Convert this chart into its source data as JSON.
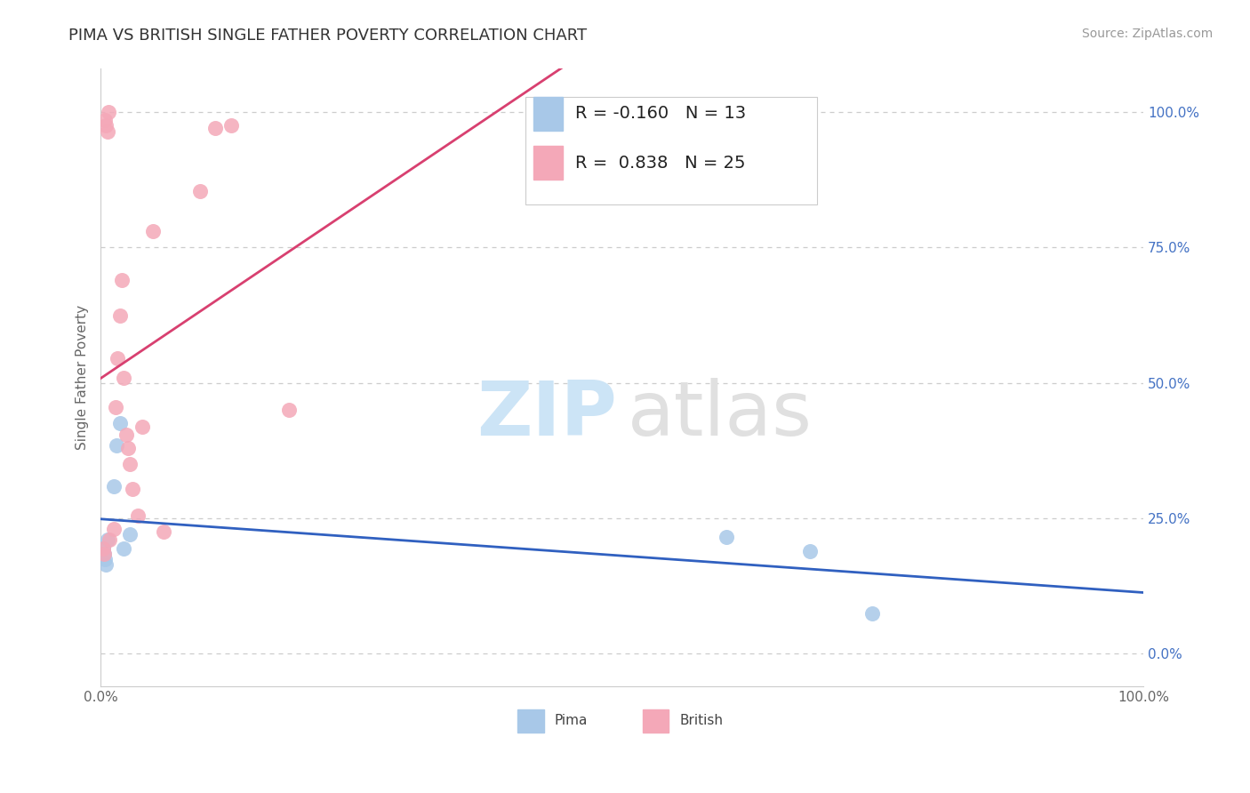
{
  "title": "PIMA VS BRITISH SINGLE FATHER POVERTY CORRELATION CHART",
  "source": "Source: ZipAtlas.com",
  "ylabel": "Single Father Poverty",
  "xlim": [
    0.0,
    1.0
  ],
  "ylim": [
    -0.06,
    1.08
  ],
  "xtick_positions": [
    0.0,
    0.25,
    0.5,
    0.75,
    1.0
  ],
  "xticklabels": [
    "0.0%",
    "",
    "",
    "",
    "100.0%"
  ],
  "ytick_positions": [
    0.0,
    0.25,
    0.5,
    0.75,
    1.0
  ],
  "ytick_right_labels": [
    "0.0%",
    "25.0%",
    "50.0%",
    "75.0%",
    "100.0%"
  ],
  "legend_r_pima": "-0.160",
  "legend_n_pima": "13",
  "legend_r_british": "0.838",
  "legend_n_british": "25",
  "pima_color": "#a8c8e8",
  "british_color": "#f4a8b8",
  "pima_line_color": "#3060c0",
  "british_line_color": "#d84070",
  "background_color": "#ffffff",
  "grid_color": "#cccccc",
  "pima_x": [
    0.002,
    0.003,
    0.004,
    0.005,
    0.006,
    0.012,
    0.015,
    0.018,
    0.022,
    0.028,
    0.6,
    0.68,
    0.74
  ],
  "pima_y": [
    0.195,
    0.185,
    0.175,
    0.165,
    0.21,
    0.31,
    0.385,
    0.425,
    0.195,
    0.22,
    0.215,
    0.19,
    0.075
  ],
  "british_x": [
    0.002,
    0.003,
    0.004,
    0.005,
    0.006,
    0.007,
    0.008,
    0.012,
    0.014,
    0.016,
    0.018,
    0.02,
    0.022,
    0.024,
    0.026,
    0.028,
    0.03,
    0.035,
    0.04,
    0.05,
    0.06,
    0.095,
    0.11,
    0.125,
    0.18
  ],
  "british_y": [
    0.195,
    0.185,
    0.985,
    0.975,
    0.965,
    1.0,
    0.21,
    0.23,
    0.455,
    0.545,
    0.625,
    0.69,
    0.51,
    0.405,
    0.38,
    0.35,
    0.305,
    0.255,
    0.42,
    0.78,
    0.225,
    0.855,
    0.97,
    0.975,
    0.45
  ],
  "title_fontsize": 13,
  "axis_label_fontsize": 11,
  "tick_fontsize": 11,
  "legend_fontsize": 14,
  "source_fontsize": 10,
  "watermark_zip_color": "#cce4f6",
  "watermark_atlas_color": "#e0e0e0"
}
